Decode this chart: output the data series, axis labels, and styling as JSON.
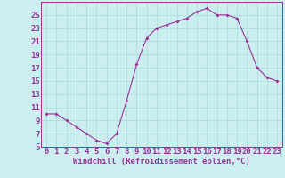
{
  "x": [
    0,
    1,
    2,
    3,
    4,
    5,
    6,
    7,
    8,
    9,
    10,
    11,
    12,
    13,
    14,
    15,
    16,
    17,
    18,
    19,
    20,
    21,
    22,
    23
  ],
  "y": [
    10,
    10,
    9,
    8,
    7,
    6,
    5.5,
    7,
    12,
    17.5,
    21.5,
    23,
    23.5,
    24,
    24.5,
    25.5,
    26,
    25,
    25,
    24.5,
    21,
    17,
    15.5,
    15
  ],
  "xlabel": "Windchill (Refroidissement éolien,°C)",
  "xlim": [
    -0.5,
    23.5
  ],
  "ylim": [
    5,
    27
  ],
  "yticks": [
    5,
    7,
    9,
    11,
    13,
    15,
    17,
    19,
    21,
    23,
    25
  ],
  "xticks": [
    0,
    1,
    2,
    3,
    4,
    5,
    6,
    7,
    8,
    9,
    10,
    11,
    12,
    13,
    14,
    15,
    16,
    17,
    18,
    19,
    20,
    21,
    22,
    23
  ],
  "line_color": "#993399",
  "marker_color": "#993399",
  "bg_color": "#cceeee",
  "grid_color": "#aadddd",
  "text_color": "#993399",
  "xlabel_fontsize": 6.5,
  "tick_fontsize": 6.5
}
